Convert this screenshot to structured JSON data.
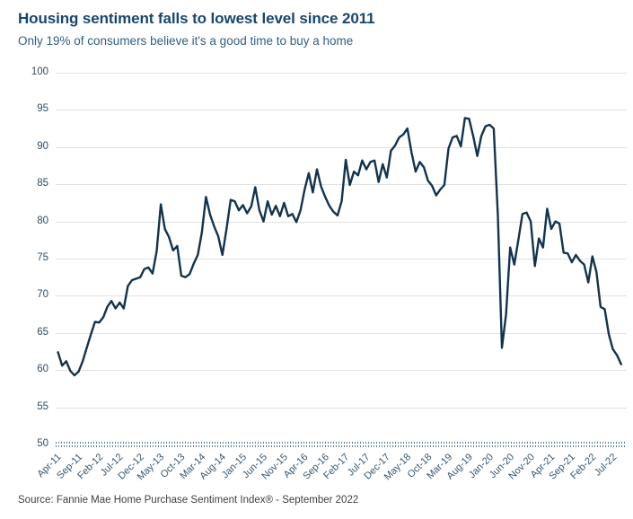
{
  "header": {
    "title": "Housing sentiment falls to lowest level since 2011",
    "subtitle": "Only 19% of consumers believe it's a good time to buy a home"
  },
  "source": "Source: Fannie Mae Home Purchase Sentiment Index® - September 2022",
  "colors": {
    "title": "#17466e",
    "subtitle": "#315e80",
    "line": "#12334e",
    "grid": "#e1e1e1",
    "axis_labels": "#3a576d",
    "axis_dots": "#567a94"
  },
  "chart_data": {
    "type": "line",
    "title": "Housing sentiment falls to lowest level since 2011",
    "subtitle": "Only 19% of consumers believe it's a good time to buy a home",
    "xlabel": "",
    "ylabel": "",
    "ylim": [
      50,
      100
    ],
    "grid": true,
    "legend": false,
    "frequency": "monthly",
    "x_start": "Apr-11",
    "x_end": "Sep-22",
    "y_ticks": [
      100,
      95,
      90,
      85,
      80,
      75,
      70,
      65,
      60,
      55,
      50
    ],
    "x_tick_labels": [
      "Apr-11",
      "Sep-11",
      "Feb-12",
      "Jul-12",
      "Dec-12",
      "May-13",
      "Oct-13",
      "Mar-14",
      "Aug-14",
      "Jan-15",
      "Jun-15",
      "Nov-15",
      "Apr-16",
      "Sep-16",
      "Feb-17",
      "Jul-17",
      "Dec-17",
      "May-18",
      "Oct-18",
      "Mar-19",
      "Aug-19",
      "Jan-20",
      "Jun-20",
      "Nov-20",
      "Apr-21",
      "Sep-21",
      "Feb-22",
      "Jul-22"
    ],
    "x_tick_interval_months": 5,
    "line_color": "#12334e",
    "series": [
      {
        "name": "Fannie Mae Home Purchase Sentiment Index",
        "values": [
          62.4,
          60.6,
          61.2,
          59.9,
          59.3,
          59.8,
          61.2,
          63.0,
          64.8,
          66.5,
          66.4,
          67.1,
          68.5,
          69.3,
          68.3,
          69.1,
          68.3,
          71.3,
          72.1,
          72.3,
          72.5,
          73.6,
          73.8,
          73.0,
          76.0,
          82.3,
          79.0,
          77.9,
          76.1,
          76.7,
          72.7,
          72.5,
          72.9,
          74.3,
          75.5,
          78.5,
          83.3,
          80.9,
          79.3,
          78.0,
          75.5,
          79.0,
          82.9,
          82.7,
          81.5,
          82.2,
          81.1,
          82.0,
          84.6,
          81.5,
          80.0,
          82.7,
          80.9,
          82.1,
          80.7,
          82.5,
          80.7,
          81.0,
          79.9,
          81.5,
          84.3,
          86.5,
          83.9,
          87.0,
          84.7,
          83.3,
          82.1,
          81.3,
          80.8,
          82.7,
          88.3,
          84.9,
          86.7,
          86.2,
          88.2,
          87.0,
          88.0,
          88.2,
          85.3,
          87.7,
          85.9,
          89.5,
          90.2,
          91.3,
          91.7,
          92.5,
          89.3,
          86.7,
          88.0,
          87.3,
          85.5,
          84.8,
          83.5,
          84.3,
          84.9,
          89.8,
          91.3,
          91.5,
          90.1,
          93.9,
          93.8,
          91.5,
          88.8,
          91.5,
          92.8,
          93.0,
          92.5,
          80.8,
          63.0,
          67.5,
          76.5,
          74.2,
          77.5,
          81.0,
          81.2,
          80.0,
          74.0,
          77.7,
          76.5,
          81.7,
          79.0,
          80.0,
          79.7,
          75.8,
          75.7,
          74.5,
          75.5,
          74.7,
          74.2,
          71.8,
          75.3,
          73.2,
          68.5,
          68.2,
          64.8,
          62.8,
          62.0,
          60.8
        ]
      }
    ]
  }
}
